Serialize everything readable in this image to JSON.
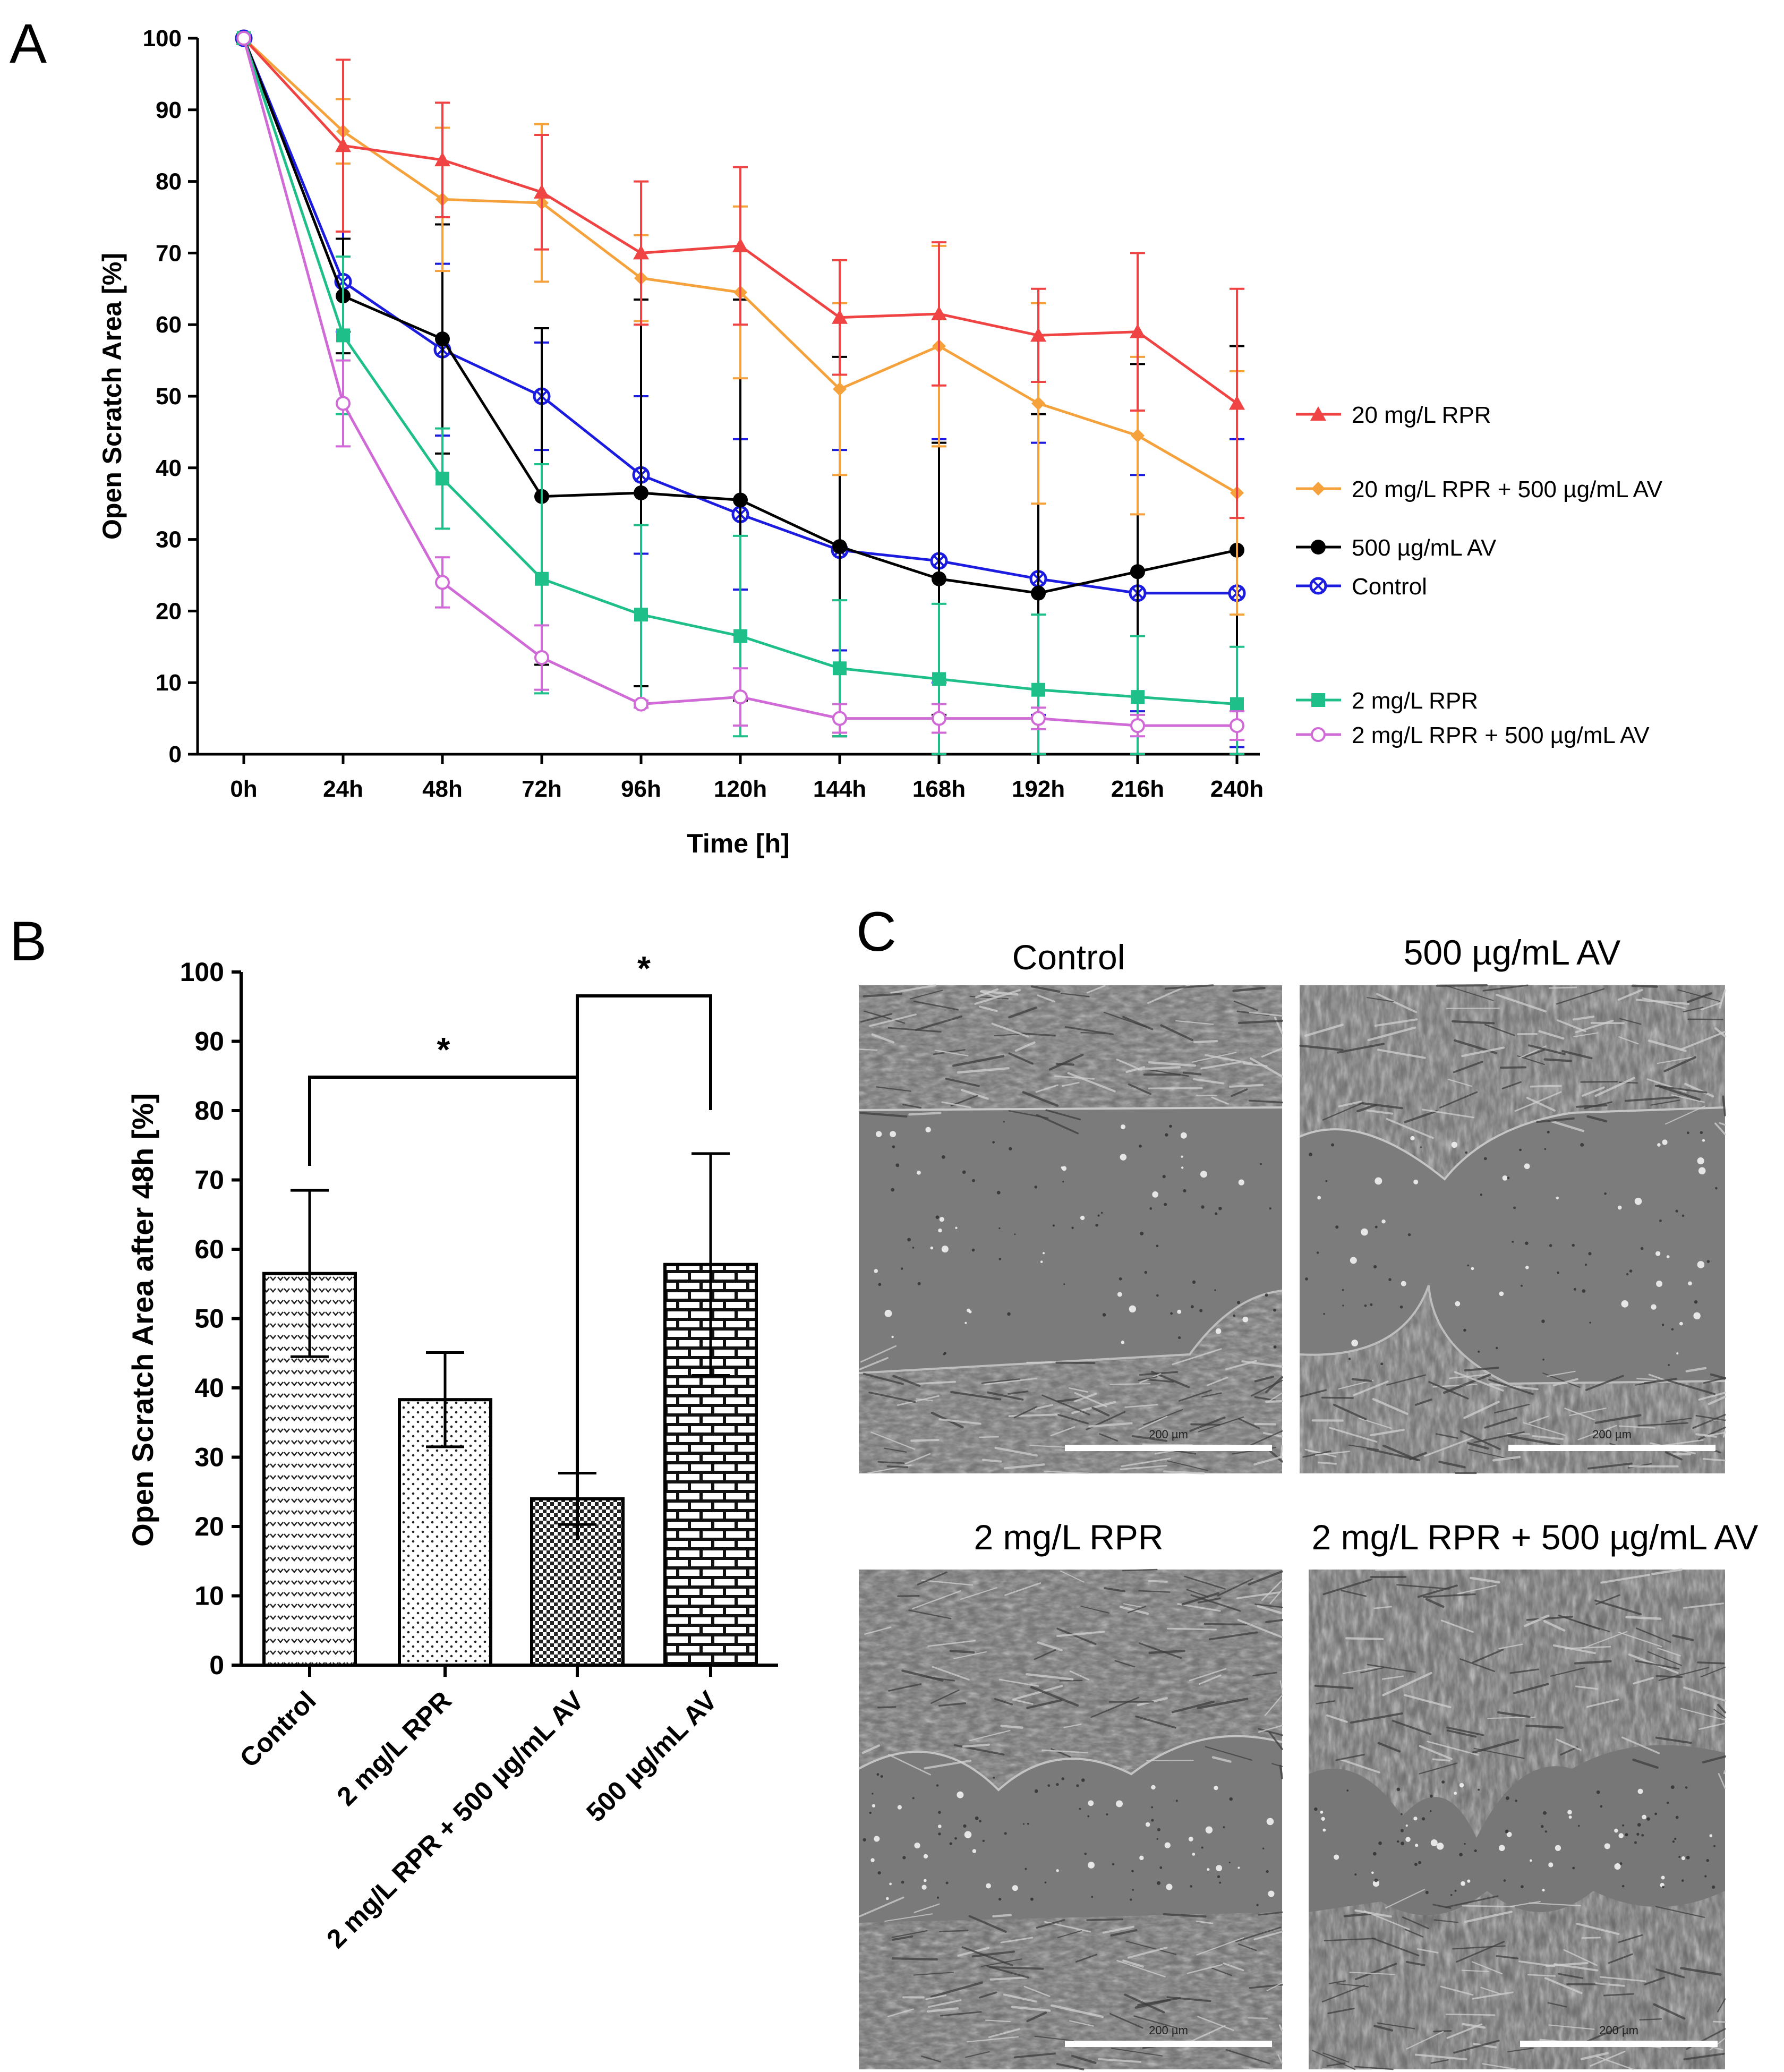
{
  "panels": {
    "a": "A",
    "b": "B",
    "c": "C"
  },
  "chart_data": [
    {
      "type": "line",
      "panel": "A",
      "xlabel": "Time [h]",
      "ylabel": "Open Scratch Area [%]",
      "ylim": [
        0,
        100
      ],
      "yticks": [
        "0",
        "10",
        "20",
        "30",
        "40",
        "50",
        "60",
        "70",
        "80",
        "90",
        "100"
      ],
      "categories": [
        "0h",
        "24h",
        "48h",
        "72h",
        "96h",
        "120h",
        "144h",
        "168h",
        "192h",
        "216h",
        "240h"
      ],
      "series": [
        {
          "name": "20 mg/L RPR",
          "color": "#f04444",
          "marker": "triangle",
          "values": [
            100,
            85,
            83,
            78.5,
            70,
            71,
            61,
            61.5,
            58.5,
            59,
            49
          ],
          "errors": [
            0,
            12,
            8,
            8,
            10,
            11,
            8,
            10,
            6.5,
            11,
            16
          ]
        },
        {
          "name": "20 mg/L RPR + 500 µg/mL AV",
          "color": "#f5a23c",
          "marker": "diamond",
          "values": [
            100,
            87,
            77.5,
            77,
            66.5,
            64.5,
            51,
            57,
            49,
            44.5,
            36.5
          ],
          "errors": [
            0,
            4.5,
            10,
            11,
            6,
            12,
            12,
            14,
            14,
            11,
            17
          ]
        },
        {
          "name": "500 µg/mL AV",
          "color": "#000000",
          "marker": "circle",
          "values": [
            100,
            64,
            58,
            36,
            36.5,
            35.5,
            29,
            24.5,
            22.5,
            25.5,
            28.5
          ],
          "errors": [
            0,
            8,
            16,
            23.5,
            27,
            28,
            26.5,
            19,
            25,
            29,
            28.5
          ]
        },
        {
          "name": "Control",
          "color": "#1c1ce0",
          "marker": "circle-x",
          "values": [
            100,
            66,
            56.5,
            50,
            39,
            33.5,
            28.5,
            27,
            24.5,
            22.5,
            22.5
          ],
          "errors": [
            0,
            7,
            12,
            7.5,
            11,
            10.5,
            14,
            17,
            19,
            16.5,
            21.5
          ]
        },
        {
          "name": "2 mg/L RPR",
          "color": "#1fbf8a",
          "marker": "square",
          "values": [
            100,
            58.5,
            38.5,
            24.5,
            19.5,
            16.5,
            12,
            10.5,
            9,
            8,
            7
          ],
          "errors": [
            0,
            11,
            7,
            16,
            12.5,
            14,
            9.5,
            10.5,
            10.5,
            8.5,
            8
          ]
        },
        {
          "name": "2 mg/L RPR + 500 µg/mL AV",
          "color": "#cf6ad6",
          "marker": "open-circle",
          "values": [
            100,
            49,
            24,
            13.5,
            7,
            8,
            5,
            5,
            5,
            4,
            4
          ],
          "errors": [
            0,
            6,
            3.5,
            4.5,
            0.5,
            4,
            2,
            2,
            1.5,
            1.5,
            2
          ]
        }
      ],
      "legend_order": [
        "20 mg/L RPR",
        "20 mg/L RPR + 500 µg/mL AV",
        "500 µg/mL AV",
        "Control",
        "2 mg/L RPR",
        "2 mg/L RPR + 500 µg/mL AV"
      ]
    },
    {
      "type": "bar",
      "panel": "B",
      "ylabel": "Open Scratch Area after 48h [%]",
      "ylim": [
        0,
        100
      ],
      "yticks": [
        "0",
        "10",
        "20",
        "30",
        "40",
        "50",
        "60",
        "70",
        "80",
        "90",
        "100"
      ],
      "categories": [
        "Control",
        "2 mg/L RPR",
        "2 mg/L RPR + 500 µg/mL AV",
        "500 µg/mL AV"
      ],
      "values": [
        56.5,
        38.3,
        24,
        57.8
      ],
      "errors": [
        12,
        6.8,
        3.7,
        16
      ],
      "patterns": [
        "chevron",
        "dots",
        "checker",
        "brick"
      ],
      "significance": [
        {
          "from": 0,
          "to": 2,
          "label": "*"
        },
        {
          "from": 2,
          "to": 3,
          "label": "*"
        }
      ]
    }
  ],
  "micrographs": {
    "titles": [
      "Control",
      "500 µg/mL AV",
      "2 mg/L RPR",
      "2 mg/L RPR + 500 µg/mL AV"
    ],
    "scale_bar_label": "200 µm"
  }
}
